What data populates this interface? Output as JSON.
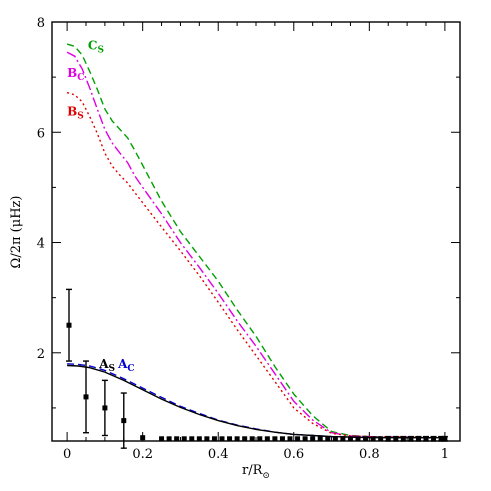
{
  "chart_data": {
    "type": "line",
    "xlabel": "r/R",
    "xlabel_sub": "⊙",
    "ylabel": "Ω/2π  (μHz)",
    "xlim": [
      -0.04,
      1.04
    ],
    "ylim": [
      0.4,
      8.0
    ],
    "x_ticks": [
      0,
      0.2,
      0.4,
      0.6,
      0.8,
      1
    ],
    "x_tick_labels": [
      "0",
      "0.2",
      "0.4",
      "0.6",
      "0.8",
      "1"
    ],
    "y_ticks": [
      2,
      4,
      6,
      8
    ],
    "y_tick_labels": [
      "2",
      "4",
      "6",
      "8"
    ],
    "grid": false,
    "series": [
      {
        "name": "C",
        "sub": "S",
        "color": "#00a000",
        "style": "dashed",
        "x": [
          0,
          0.02,
          0.04,
          0.06,
          0.08,
          0.1,
          0.12,
          0.14,
          0.16,
          0.18,
          0.2,
          0.25,
          0.3,
          0.35,
          0.4,
          0.45,
          0.5,
          0.55,
          0.6,
          0.65,
          0.7,
          0.75,
          0.8,
          0.85,
          0.9,
          0.95,
          1.0
        ],
        "y": [
          7.6,
          7.56,
          7.4,
          7.1,
          6.78,
          6.42,
          6.2,
          6.05,
          5.9,
          5.66,
          5.4,
          4.75,
          4.2,
          3.75,
          3.3,
          2.78,
          2.3,
          1.75,
          1.25,
          0.86,
          0.57,
          0.5,
          0.48,
          0.47,
          0.47,
          0.46,
          0.46
        ]
      },
      {
        "name": "B",
        "sub": "C",
        "color": "#e000e0",
        "style": "long-dash-dot",
        "x": [
          0,
          0.02,
          0.04,
          0.06,
          0.08,
          0.1,
          0.12,
          0.14,
          0.16,
          0.18,
          0.2,
          0.25,
          0.3,
          0.35,
          0.4,
          0.45,
          0.5,
          0.55,
          0.6,
          0.65,
          0.7,
          0.75,
          0.8,
          0.85,
          0.9,
          0.95,
          1.0
        ],
        "y": [
          7.45,
          7.38,
          7.15,
          6.8,
          6.42,
          6.05,
          5.8,
          5.62,
          5.45,
          5.2,
          5.0,
          4.52,
          4.0,
          3.55,
          3.08,
          2.58,
          2.12,
          1.62,
          1.12,
          0.78,
          0.55,
          0.49,
          0.48,
          0.47,
          0.47,
          0.46,
          0.46
        ]
      },
      {
        "name": "B",
        "sub": "S",
        "color": "#e00000",
        "style": "dotted",
        "x": [
          0,
          0.02,
          0.04,
          0.06,
          0.08,
          0.1,
          0.12,
          0.14,
          0.16,
          0.18,
          0.2,
          0.25,
          0.3,
          0.35,
          0.4,
          0.45,
          0.5,
          0.55,
          0.6,
          0.65,
          0.7,
          0.75,
          0.8,
          0.85,
          0.9,
          0.95,
          1.0
        ],
        "y": [
          6.72,
          6.68,
          6.55,
          6.28,
          5.98,
          5.62,
          5.38,
          5.22,
          5.08,
          4.9,
          4.72,
          4.28,
          3.85,
          3.4,
          2.92,
          2.42,
          1.95,
          1.48,
          1.0,
          0.72,
          0.54,
          0.49,
          0.48,
          0.47,
          0.47,
          0.46,
          0.46
        ]
      },
      {
        "name": "A",
        "sub": "C",
        "color": "#0000cc",
        "style": "dashed",
        "x": [
          0,
          0.03,
          0.06,
          0.1,
          0.15,
          0.2,
          0.25,
          0.3,
          0.35,
          0.4,
          0.45,
          0.5,
          0.55,
          0.6,
          0.65,
          0.7,
          0.75,
          0.8,
          0.85,
          0.9,
          0.95,
          1.0
        ],
        "y": [
          1.8,
          1.79,
          1.76,
          1.68,
          1.53,
          1.36,
          1.19,
          1.03,
          0.9,
          0.78,
          0.69,
          0.62,
          0.56,
          0.52,
          0.5,
          0.48,
          0.47,
          0.47,
          0.46,
          0.46,
          0.46,
          0.46
        ]
      },
      {
        "name": "A",
        "sub": "S",
        "color": "#000000",
        "style": "solid",
        "x": [
          0,
          0.03,
          0.06,
          0.1,
          0.15,
          0.2,
          0.25,
          0.3,
          0.35,
          0.4,
          0.45,
          0.5,
          0.55,
          0.6,
          0.65,
          0.7,
          0.75,
          0.8,
          0.85,
          0.9,
          0.95,
          1.0
        ],
        "y": [
          1.77,
          1.76,
          1.73,
          1.65,
          1.5,
          1.33,
          1.16,
          1.01,
          0.88,
          0.77,
          0.68,
          0.61,
          0.56,
          0.52,
          0.5,
          0.48,
          0.47,
          0.46,
          0.46,
          0.46,
          0.46,
          0.46
        ]
      }
    ],
    "observations": {
      "color": "#000000",
      "x": [
        0.005,
        0.05,
        0.1,
        0.15,
        0.2,
        0.25,
        0.27,
        0.29,
        0.31,
        0.33,
        0.35,
        0.37,
        0.39,
        0.41,
        0.43,
        0.45,
        0.47,
        0.49,
        0.51,
        0.53,
        0.55,
        0.57,
        0.59,
        0.61,
        0.63,
        0.65,
        0.67,
        0.69,
        0.71,
        0.73,
        0.75,
        0.77,
        0.79,
        0.81,
        0.83,
        0.85,
        0.87,
        0.89,
        0.91,
        0.93,
        0.95,
        0.97,
        0.99,
        1.0
      ],
      "y": [
        2.5,
        1.2,
        1.0,
        0.77,
        0.46,
        0.44,
        0.44,
        0.44,
        0.44,
        0.44,
        0.44,
        0.44,
        0.44,
        0.44,
        0.44,
        0.44,
        0.44,
        0.44,
        0.44,
        0.44,
        0.44,
        0.44,
        0.44,
        0.44,
        0.44,
        0.44,
        0.44,
        0.44,
        0.44,
        0.44,
        0.44,
        0.44,
        0.44,
        0.44,
        0.44,
        0.44,
        0.44,
        0.44,
        0.44,
        0.44,
        0.44,
        0.44,
        0.44,
        0.44
      ],
      "y_err": [
        0.65,
        0.65,
        0.5,
        0.5,
        0,
        0,
        0,
        0,
        0,
        0,
        0,
        0,
        0,
        0,
        0,
        0,
        0,
        0,
        0,
        0,
        0,
        0,
        0,
        0,
        0,
        0,
        0,
        0,
        0,
        0,
        0,
        0,
        0,
        0,
        0,
        0.04,
        0.04,
        0.04,
        0.04,
        0.04,
        0.04,
        0.04,
        0.04,
        0.04
      ]
    },
    "labels": [
      {
        "name": "C",
        "sub": "S",
        "color": "#00a000",
        "x": 0.055,
        "y": 7.5
      },
      {
        "name": "B",
        "sub": "C",
        "color": "#e000e0",
        "x": 0.0,
        "y": 7.0
      },
      {
        "name": "B",
        "sub": "S",
        "color": "#e00000",
        "x": 0.0,
        "y": 6.3
      },
      {
        "name": "A",
        "sub": "S",
        "color": "#000000",
        "x": 0.085,
        "y": 1.72
      },
      {
        "name": "A",
        "sub": "C",
        "color": "#0000cc",
        "x": 0.135,
        "y": 1.72
      }
    ]
  }
}
